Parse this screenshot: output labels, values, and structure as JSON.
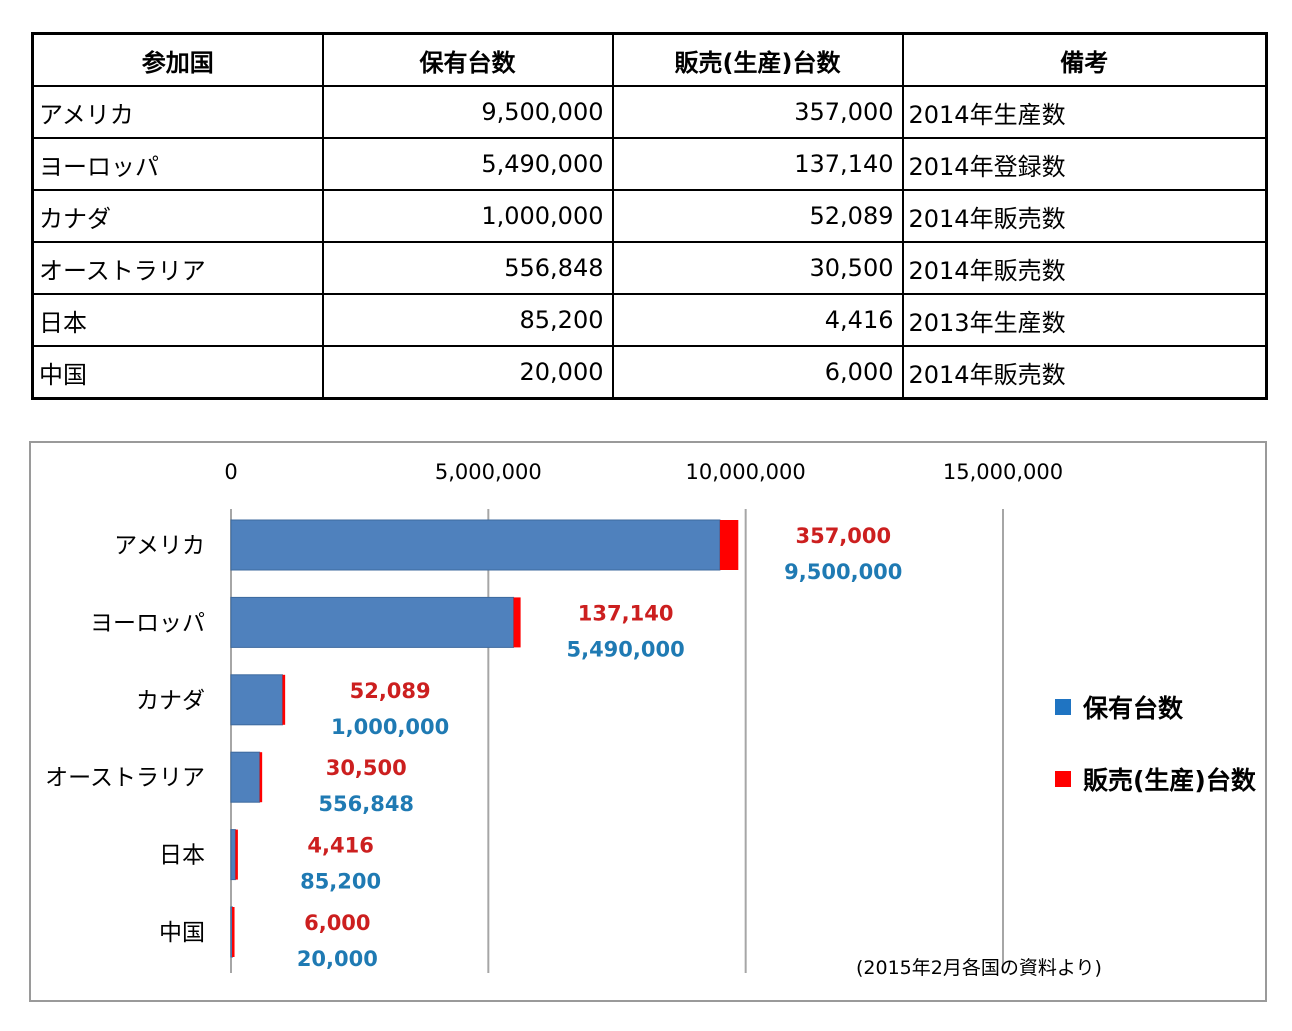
{
  "table": {
    "headers": [
      "参加国",
      "保有台数",
      "販売(生産)台数",
      "備考"
    ],
    "rows": [
      {
        "country": "アメリカ",
        "holdings": "9,500,000",
        "sales": "357,000",
        "note": "2014年生産数"
      },
      {
        "country": "ヨーロッパ",
        "holdings": "5,490,000",
        "sales": "137,140",
        "note": "2014年登録数"
      },
      {
        "country": "カナダ",
        "holdings": "1,000,000",
        "sales": "52,089",
        "note": "2014年販売数"
      },
      {
        "country": "オーストラリア",
        "holdings": "556,848",
        "sales": "30,500",
        "note": "2014年販売数"
      },
      {
        "country": "日本",
        "holdings": "85,200",
        "sales": "4,416",
        "note": "2013年生産数"
      },
      {
        "country": "中国",
        "holdings": "20,000",
        "sales": "6,000",
        "note": "2014年販売数"
      }
    ]
  },
  "chart_data": {
    "type": "bar",
    "orientation": "horizontal",
    "stacked": true,
    "categories": [
      "アメリカ",
      "ヨーロッパ",
      "カナダ",
      "オーストラリア",
      "日本",
      "中国"
    ],
    "series": [
      {
        "name": "保有台数",
        "color": "#4f81bd",
        "label_color": "#1f7ab3",
        "values": [
          9500000,
          5490000,
          1000000,
          556848,
          85200,
          20000
        ],
        "labels": [
          "9,500,000",
          "5,490,000",
          "1,000,000",
          "556,848",
          "85,200",
          "20,000"
        ]
      },
      {
        "name": "販売(生産)台数",
        "color": "#ff0000",
        "label_color": "#cc1f1f",
        "values": [
          357000,
          137140,
          52089,
          30500,
          4416,
          6000
        ],
        "labels": [
          "357,000",
          "137,140",
          "52,089",
          "30,500",
          "4,416",
          "6,000"
        ]
      }
    ],
    "xlim": [
      0,
      15000000
    ],
    "ticks": [
      0,
      5000000,
      10000000,
      15000000
    ],
    "tick_labels": [
      "0",
      "5,000,000",
      "10,000,000",
      "15,000,000"
    ],
    "axis_position": "top",
    "grid": true,
    "legend": "right",
    "legend_colors": [
      "#1f74c2",
      "#ff0000"
    ],
    "note": "(2015年2月各国の資料より)"
  }
}
